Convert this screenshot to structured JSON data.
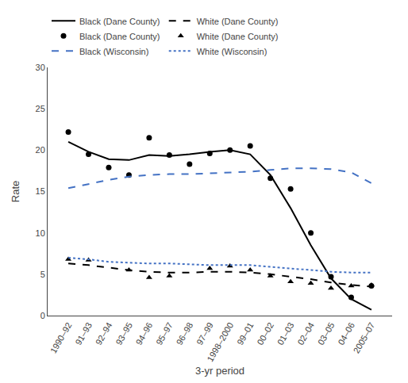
{
  "chart_data": {
    "type": "line",
    "xlabel": "3-yr period",
    "ylabel": "Rate",
    "categories": [
      "1990–92",
      "91–93",
      "92–94",
      "93–95",
      "94–96",
      "95–97",
      "96–98",
      "97–99",
      "1998–2000",
      "99–01",
      "00–02",
      "01–03",
      "02–04",
      "03–05",
      "04–06",
      "2005–07"
    ],
    "series": [
      {
        "name": "Black (Dane County)",
        "type": "line",
        "line_style": "solid",
        "color": "#000000",
        "values": [
          21.0,
          19.8,
          18.9,
          18.8,
          19.4,
          19.3,
          19.5,
          19.8,
          20.0,
          19.5,
          17.0,
          13.0,
          8.5,
          4.5,
          2.0,
          0.7
        ]
      },
      {
        "name": "White (Dane County)",
        "type": "line",
        "line_style": "dashed",
        "color": "#000000",
        "values": [
          6.3,
          6.1,
          5.8,
          5.5,
          5.3,
          5.2,
          5.2,
          5.3,
          5.3,
          5.2,
          5.0,
          4.7,
          4.4,
          4.0,
          3.7,
          3.5
        ]
      },
      {
        "name": "Black (Dane County)",
        "type": "scatter",
        "marker": "circle",
        "color": "#000000",
        "values": [
          22.2,
          19.5,
          17.9,
          17.0,
          21.5,
          19.4,
          18.3,
          19.6,
          20.0,
          20.5,
          16.6,
          15.3,
          10.0,
          4.7,
          2.2,
          3.6
        ]
      },
      {
        "name": "White (Dane County)",
        "type": "scatter",
        "marker": "triangle",
        "color": "#000000",
        "values": [
          6.8,
          6.7,
          null,
          5.5,
          4.6,
          4.8,
          null,
          5.7,
          6.0,
          5.5,
          4.8,
          4.1,
          3.9,
          3.3,
          3.6,
          3.7
        ]
      },
      {
        "name": "Black (Wisconsin)",
        "type": "line",
        "line_style": "dashed",
        "color": "#4472c4",
        "values": [
          15.4,
          15.9,
          16.4,
          16.8,
          17.0,
          17.1,
          17.1,
          17.2,
          17.3,
          17.4,
          17.6,
          17.8,
          17.8,
          17.7,
          17.3,
          16.0
        ]
      },
      {
        "name": "White (Wisconsin)",
        "type": "line",
        "line_style": "dotted",
        "color": "#4472c4",
        "values": [
          7.0,
          6.8,
          6.5,
          6.4,
          6.3,
          6.3,
          6.2,
          6.1,
          6.1,
          6.1,
          5.9,
          5.7,
          5.5,
          5.3,
          5.2,
          5.2
        ]
      }
    ],
    "ylim": [
      0,
      30
    ],
    "yticks": [
      0,
      5,
      10,
      15,
      20,
      25,
      30
    ],
    "grid": false,
    "legend": "top"
  }
}
